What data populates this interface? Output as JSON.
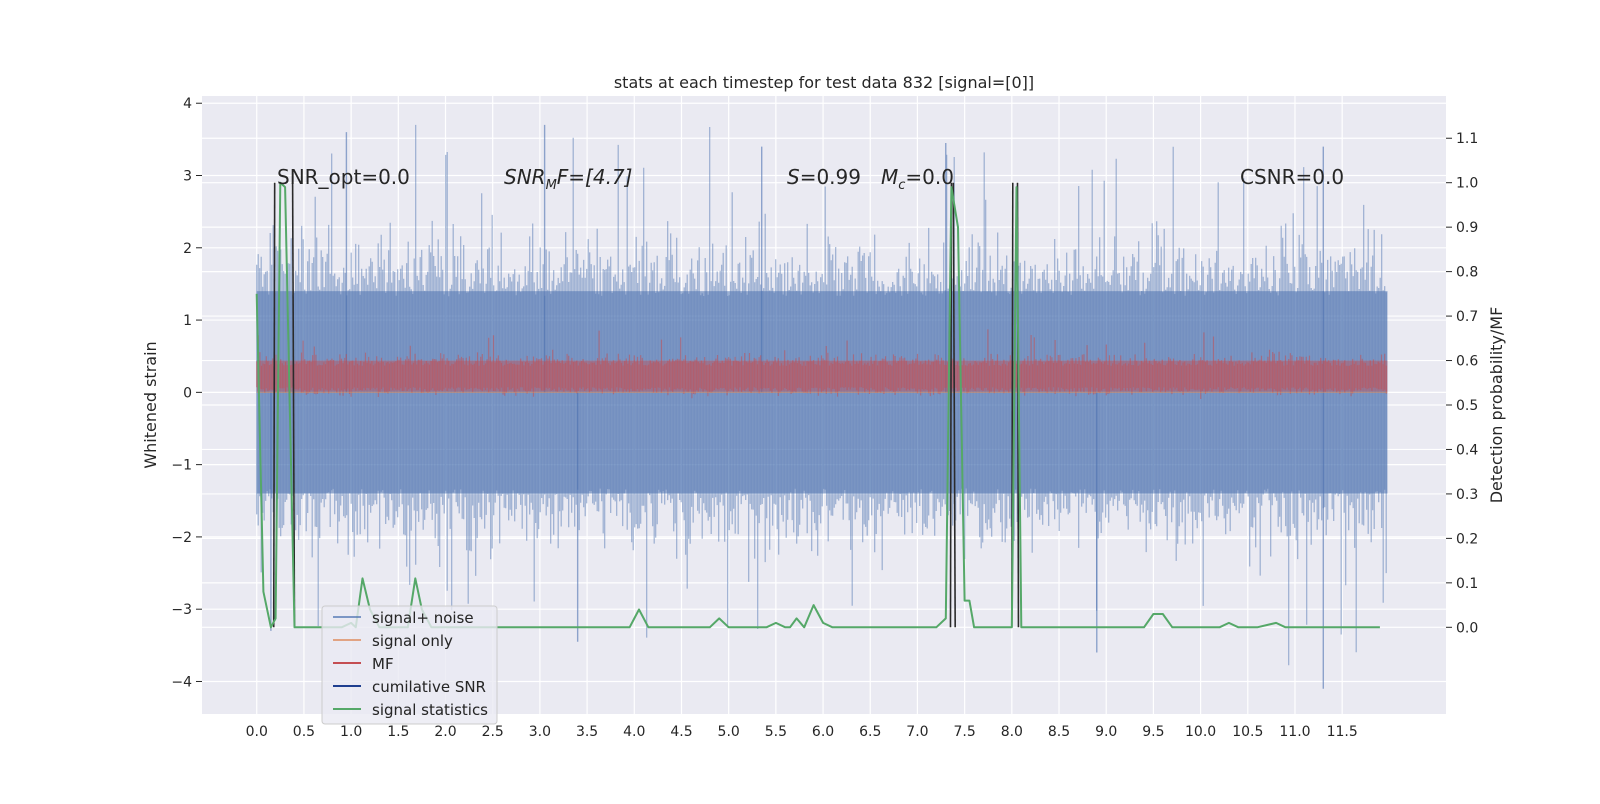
{
  "chart_data": {
    "type": "line",
    "title": "stats at each timestep for test data 832 [signal=[0]]",
    "xlabel": "",
    "ylabel": "Whitened strain",
    "y2label": "Detection probability/MF",
    "xlim": [
      -0.58,
      12.6
    ],
    "ylim": [
      -4.45,
      4.1
    ],
    "y2lim": [
      -0.195,
      1.195
    ],
    "x_ticks": [
      0.0,
      0.5,
      1.0,
      1.5,
      2.0,
      2.5,
      3.0,
      3.5,
      4.0,
      4.5,
      5.0,
      5.5,
      6.0,
      6.5,
      7.0,
      7.5,
      8.0,
      8.5,
      9.0,
      9.5,
      10.0,
      10.5,
      11.0,
      11.5
    ],
    "x_tick_labels": [
      "0.0",
      "0.5",
      "1.0",
      "1.5",
      "2.0",
      "2.5",
      "3.0",
      "3.5",
      "4.0",
      "4.5",
      "5.0",
      "5.5",
      "6.0",
      "6.5",
      "7.0",
      "7.5",
      "8.0",
      "8.5",
      "9.0",
      "9.5",
      "10.0",
      "10.5",
      "11.0",
      "11.5"
    ],
    "y_ticks": [
      -4,
      -3,
      -2,
      -1,
      0,
      1,
      2,
      3,
      4
    ],
    "y_tick_labels": [
      "−4",
      "−3",
      "−2",
      "−1",
      "0",
      "1",
      "2",
      "3",
      "4"
    ],
    "y2_ticks": [
      0.0,
      0.1,
      0.2,
      0.3,
      0.4,
      0.5,
      0.6,
      0.7,
      0.8,
      0.9,
      1.0,
      1.1
    ],
    "y2_tick_labels": [
      "0.0",
      "0.1",
      "0.2",
      "0.3",
      "0.4",
      "0.5",
      "0.6",
      "0.7",
      "0.8",
      "0.9",
      "1.0",
      "1.1"
    ],
    "grid": true,
    "legend_position": "lower-left",
    "noise_band": {
      "x_range": [
        0.0,
        11.98
      ],
      "typical_upper": 1.4,
      "typical_lower": -1.4,
      "peak_upper": 3.7,
      "peak_lower": -4.1
    },
    "signal_only": {
      "value": 0.0
    },
    "mf_band": {
      "x_range": [
        0.0,
        11.98
      ],
      "y2_low": 0.53,
      "y2_high": 0.6,
      "y2_peak": 0.67
    },
    "cumulative_snr": {
      "x": [
        0.0,
        0.18,
        0.19,
        0.38,
        0.4,
        7.35,
        7.37,
        7.38,
        7.4,
        8.0,
        8.02,
        8.05,
        8.07
      ],
      "y2": [
        0.0,
        0.0,
        1.0,
        1.0,
        0.0,
        0.0,
        1.0,
        1.0,
        0.0,
        0.0,
        1.0,
        1.0,
        0.0
      ],
      "segments": [
        [
          0.18,
          0.0,
          0.19,
          1.0
        ],
        [
          0.38,
          1.0,
          0.4,
          0.0
        ],
        [
          7.35,
          0.0,
          7.36,
          1.0
        ],
        [
          7.38,
          1.0,
          7.4,
          0.0
        ],
        [
          8.0,
          0.0,
          8.01,
          1.0
        ],
        [
          8.06,
          1.0,
          8.07,
          0.0
        ]
      ]
    },
    "signal_statistics": {
      "x": [
        0.0,
        0.07,
        0.15,
        0.2,
        0.25,
        0.3,
        0.4,
        0.45,
        0.5,
        0.6,
        0.7,
        0.8,
        0.9,
        1.0,
        1.05,
        1.12,
        1.2,
        1.3,
        1.4,
        1.5,
        1.6,
        1.68,
        1.75,
        1.85,
        1.95,
        2.1,
        2.3,
        2.5,
        2.6,
        2.8,
        3.0,
        3.2,
        3.4,
        3.6,
        3.8,
        3.95,
        4.05,
        4.15,
        4.25,
        4.5,
        4.8,
        4.9,
        5.0,
        5.2,
        5.4,
        5.5,
        5.6,
        5.65,
        5.72,
        5.8,
        5.9,
        6.0,
        6.1,
        6.2,
        6.4,
        6.6,
        6.8,
        7.0,
        7.2,
        7.3,
        7.36,
        7.43,
        7.5,
        7.55,
        7.6,
        7.7,
        7.9,
        8.0,
        8.05,
        8.1,
        8.3,
        8.5,
        8.8,
        9.0,
        9.2,
        9.4,
        9.5,
        9.6,
        9.7,
        9.9,
        10.2,
        10.3,
        10.4,
        10.6,
        10.8,
        10.9,
        11.0,
        11.2,
        11.4,
        11.6,
        11.8,
        11.9
      ],
      "y2": [
        0.75,
        0.08,
        0.0,
        0.02,
        1.0,
        0.99,
        0.0,
        0.0,
        0.0,
        0.0,
        0.0,
        0.0,
        0.0,
        0.01,
        0.0,
        0.11,
        0.04,
        0.0,
        0.0,
        0.0,
        0.0,
        0.11,
        0.04,
        0.0,
        0.0,
        0.0,
        0.0,
        0.0,
        0.0,
        0.0,
        0.0,
        0.0,
        0.0,
        0.0,
        0.0,
        0.0,
        0.04,
        0.0,
        0.0,
        0.0,
        0.0,
        0.02,
        0.0,
        0.0,
        0.0,
        0.01,
        0.0,
        0.0,
        0.02,
        0.0,
        0.05,
        0.01,
        0.0,
        0.0,
        0.0,
        0.0,
        0.0,
        0.0,
        0.0,
        0.02,
        0.99,
        0.9,
        0.06,
        0.06,
        0.0,
        0.0,
        0.0,
        0.0,
        0.99,
        0.0,
        0.0,
        0.0,
        0.0,
        0.0,
        0.0,
        0.0,
        0.03,
        0.03,
        0.0,
        0.0,
        0.0,
        0.01,
        0.0,
        0.0,
        0.01,
        0.0,
        0.0,
        0.0,
        0.0,
        0.0,
        0.0,
        0.0
      ]
    },
    "series": [
      {
        "name": "signal+ noise",
        "color": "#4c72b0"
      },
      {
        "name": "signal only",
        "color": "#dd8452"
      },
      {
        "name": "MF",
        "color": "#c44e52"
      },
      {
        "name": "cumilative SNR",
        "color": "#1f3f8f"
      },
      {
        "name": "signal statistics",
        "color": "#55a868"
      }
    ],
    "legend_ghost_labels": [
      "signal+ noise",
      "signal only",
      "MF",
      "cumilative SNR",
      "signal statistics"
    ],
    "annotations": [
      {
        "text": "SNR_opt=0.0",
        "x": 0.2,
        "y": 3.0
      },
      {
        "text": "CSNR=0.0",
        "x": 10.4,
        "y": 3.0
      }
    ],
    "annotation_snr_mf": {
      "x": 2.6,
      "y": 3.0,
      "base": "SNR",
      "sub": "M",
      "rest": "F=[4.7]"
    },
    "annotation_s": {
      "x": 5.6,
      "y": 3.0,
      "base": "S",
      "rest": "=0.99"
    },
    "annotation_mc": {
      "x": 6.6,
      "y": 3.0,
      "base": "M",
      "sub": "c",
      "rest": "=0.0"
    }
  }
}
